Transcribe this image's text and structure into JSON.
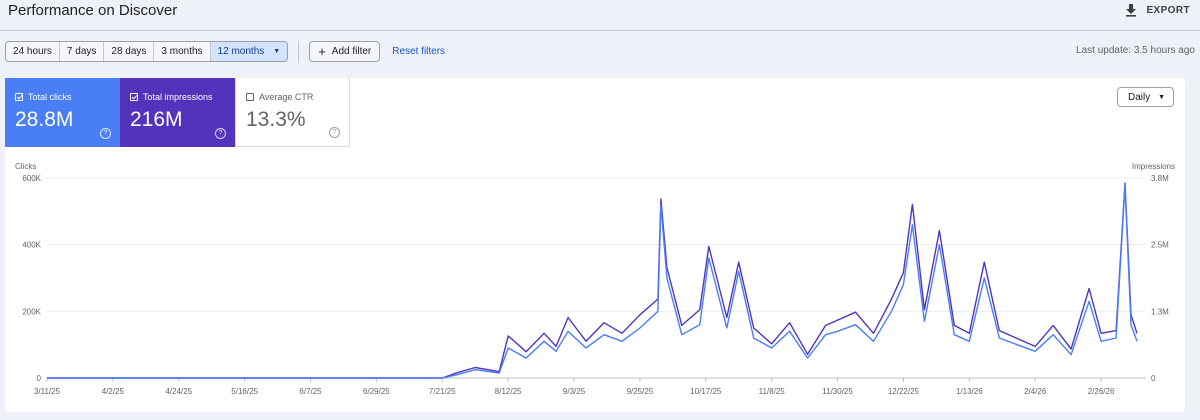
{
  "header": {
    "title": "Performance on Discover",
    "export_label": "EXPORT"
  },
  "toolbar": {
    "ranges": [
      "24 hours",
      "7 days",
      "28 days",
      "3 months",
      "12 months"
    ],
    "active_range": "12 months",
    "add_filter_label": "Add filter",
    "reset_label": "Reset filters",
    "last_update": "Last update: 3.5 hours ago"
  },
  "metrics": [
    {
      "label": "Total clicks",
      "value": "28.8M",
      "checked": true,
      "color": "#4a7ef4"
    },
    {
      "label": "Total impressions",
      "value": "216M",
      "checked": true,
      "color": "#5333bb"
    },
    {
      "label": "Average CTR",
      "value": "13.3%",
      "checked": false,
      "color": "#ffffff"
    }
  ],
  "granularity": "Daily",
  "chart_data": {
    "type": "line",
    "y_left_label": "Clicks",
    "y_right_label": "Impressions",
    "y_left_ticks": [
      "600K",
      "400K",
      "200K",
      "0"
    ],
    "y_right_ticks": [
      "3.8M",
      "2.5M",
      "1.3M",
      "0"
    ],
    "y_left_range": [
      0,
      600000
    ],
    "y_right_range": [
      0,
      3800000
    ],
    "x_ticks": [
      "3/11/25",
      "4/2/25",
      "4/24/25",
      "5/16/25",
      "6/7/25",
      "6/29/25",
      "7/21/25",
      "8/12/25",
      "9/3/25",
      "9/25/25",
      "10/17/25",
      "11/8/25",
      "11/30/25",
      "12/22/25",
      "1/13/26",
      "2/4/26",
      "2/26/26"
    ],
    "grid": true,
    "series": [
      {
        "name": "Total clicks",
        "color": "#4a7ef4",
        "axis": "left",
        "points": [
          [
            "3/11/25",
            0
          ],
          [
            "7/21/25",
            0
          ],
          [
            "7/26/25",
            10000
          ],
          [
            "8/1/25",
            25000
          ],
          [
            "8/9/25",
            15000
          ],
          [
            "8/12/25",
            90000
          ],
          [
            "8/18/25",
            60000
          ],
          [
            "8/24/25",
            110000
          ],
          [
            "8/28/25",
            80000
          ],
          [
            "9/1/25",
            140000
          ],
          [
            "9/7/25",
            90000
          ],
          [
            "9/13/25",
            130000
          ],
          [
            "9/19/25",
            110000
          ],
          [
            "9/25/25",
            150000
          ],
          [
            "10/1/25",
            200000
          ],
          [
            "10/2/25",
            520000
          ],
          [
            "10/4/25",
            300000
          ],
          [
            "10/9/25",
            130000
          ],
          [
            "10/15/25",
            160000
          ],
          [
            "10/18/25",
            360000
          ],
          [
            "10/24/25",
            150000
          ],
          [
            "10/28/25",
            320000
          ],
          [
            "11/2/25",
            120000
          ],
          [
            "11/8/25",
            90000
          ],
          [
            "11/14/25",
            140000
          ],
          [
            "11/20/25",
            60000
          ],
          [
            "11/26/25",
            130000
          ],
          [
            "11/30/25",
            140000
          ],
          [
            "12/6/25",
            160000
          ],
          [
            "12/12/25",
            110000
          ],
          [
            "12/18/25",
            200000
          ],
          [
            "12/22/25",
            280000
          ],
          [
            "12/25/25",
            460000
          ],
          [
            "12/29/25",
            170000
          ],
          [
            "1/3/26",
            400000
          ],
          [
            "1/8/26",
            130000
          ],
          [
            "1/13/26",
            110000
          ],
          [
            "1/18/26",
            300000
          ],
          [
            "1/23/26",
            120000
          ],
          [
            "1/29/26",
            100000
          ],
          [
            "2/4/26",
            80000
          ],
          [
            "2/10/26",
            130000
          ],
          [
            "2/16/26",
            70000
          ],
          [
            "2/22/26",
            230000
          ],
          [
            "2/26/26",
            110000
          ],
          [
            "3/3/26",
            120000
          ],
          [
            "3/6/26",
            580000
          ],
          [
            "3/8/26",
            160000
          ],
          [
            "3/10/26",
            110000
          ]
        ]
      },
      {
        "name": "Total impressions",
        "color": "#5333bb",
        "axis": "right",
        "points": [
          [
            "3/11/25",
            0
          ],
          [
            "7/21/25",
            0
          ],
          [
            "7/26/25",
            100000
          ],
          [
            "8/1/25",
            200000
          ],
          [
            "8/9/25",
            120000
          ],
          [
            "8/12/25",
            800000
          ],
          [
            "8/18/25",
            500000
          ],
          [
            "8/24/25",
            850000
          ],
          [
            "8/28/25",
            600000
          ],
          [
            "9/1/25",
            1150000
          ],
          [
            "9/7/25",
            700000
          ],
          [
            "9/13/25",
            1050000
          ],
          [
            "9/19/25",
            850000
          ],
          [
            "9/25/25",
            1200000
          ],
          [
            "10/1/25",
            1500000
          ],
          [
            "10/2/25",
            3400000
          ],
          [
            "10/4/25",
            2100000
          ],
          [
            "10/9/25",
            1000000
          ],
          [
            "10/15/25",
            1300000
          ],
          [
            "10/18/25",
            2500000
          ],
          [
            "10/24/25",
            1150000
          ],
          [
            "10/28/25",
            2200000
          ],
          [
            "11/2/25",
            950000
          ],
          [
            "11/8/25",
            650000
          ],
          [
            "11/14/25",
            1050000
          ],
          [
            "11/20/25",
            450000
          ],
          [
            "11/26/25",
            1000000
          ],
          [
            "11/30/25",
            1100000
          ],
          [
            "12/6/25",
            1250000
          ],
          [
            "12/12/25",
            850000
          ],
          [
            "12/18/25",
            1500000
          ],
          [
            "12/22/25",
            2000000
          ],
          [
            "12/25/25",
            3300000
          ],
          [
            "12/29/25",
            1300000
          ],
          [
            "1/3/26",
            2800000
          ],
          [
            "1/8/26",
            1000000
          ],
          [
            "1/13/26",
            850000
          ],
          [
            "1/18/26",
            2200000
          ],
          [
            "1/23/26",
            900000
          ],
          [
            "1/29/26",
            750000
          ],
          [
            "2/4/26",
            600000
          ],
          [
            "2/10/26",
            1000000
          ],
          [
            "2/16/26",
            550000
          ],
          [
            "2/22/26",
            1700000
          ],
          [
            "2/26/26",
            850000
          ],
          [
            "3/3/26",
            900000
          ],
          [
            "3/6/26",
            3700000
          ],
          [
            "3/8/26",
            1200000
          ],
          [
            "3/10/26",
            850000
          ]
        ]
      }
    ]
  }
}
